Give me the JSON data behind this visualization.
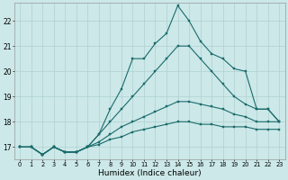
{
  "xlabel": "Humidex (Indice chaleur)",
  "bg_color": "#cce8e8",
  "grid_color": "#b0d0d0",
  "line_color": "#1a6b6b",
  "xlim": [
    -0.5,
    23.5
  ],
  "ylim": [
    16.5,
    22.7
  ],
  "yticks": [
    17,
    18,
    19,
    20,
    21,
    22
  ],
  "xtick_labels": [
    "0",
    "1",
    "2",
    "3",
    "4",
    "5",
    "6",
    "7",
    "8",
    "9",
    "10",
    "11",
    "12",
    "13",
    "14",
    "15",
    "16",
    "17",
    "18",
    "19",
    "20",
    "21",
    "22",
    "23"
  ],
  "lines": [
    [
      17.0,
      17.0,
      16.7,
      17.0,
      16.8,
      16.8,
      17.0,
      17.5,
      18.5,
      19.3,
      20.5,
      20.5,
      21.1,
      21.5,
      22.6,
      22.0,
      21.2,
      20.7,
      20.5,
      20.1,
      20.0,
      18.5,
      18.5,
      18.0
    ],
    [
      17.0,
      17.0,
      16.7,
      17.0,
      16.8,
      16.8,
      17.0,
      17.5,
      18.0,
      18.5,
      19.0,
      19.5,
      20.0,
      20.5,
      21.0,
      21.0,
      20.5,
      20.0,
      19.5,
      19.0,
      18.7,
      18.5,
      18.5,
      18.0
    ],
    [
      17.0,
      17.0,
      16.7,
      17.0,
      16.8,
      16.8,
      17.0,
      17.2,
      17.5,
      17.8,
      18.0,
      18.2,
      18.4,
      18.6,
      18.8,
      18.8,
      18.7,
      18.6,
      18.5,
      18.3,
      18.2,
      18.0,
      18.0,
      18.0
    ],
    [
      17.0,
      17.0,
      16.7,
      17.0,
      16.8,
      16.8,
      17.0,
      17.1,
      17.3,
      17.4,
      17.6,
      17.7,
      17.8,
      17.9,
      18.0,
      18.0,
      17.9,
      17.9,
      17.8,
      17.8,
      17.8,
      17.7,
      17.7,
      17.7
    ]
  ],
  "xlabel_fontsize": 6.5,
  "ytick_fontsize": 5.5,
  "xtick_fontsize": 4.8,
  "marker_size": 2.0,
  "line_width": 0.8
}
